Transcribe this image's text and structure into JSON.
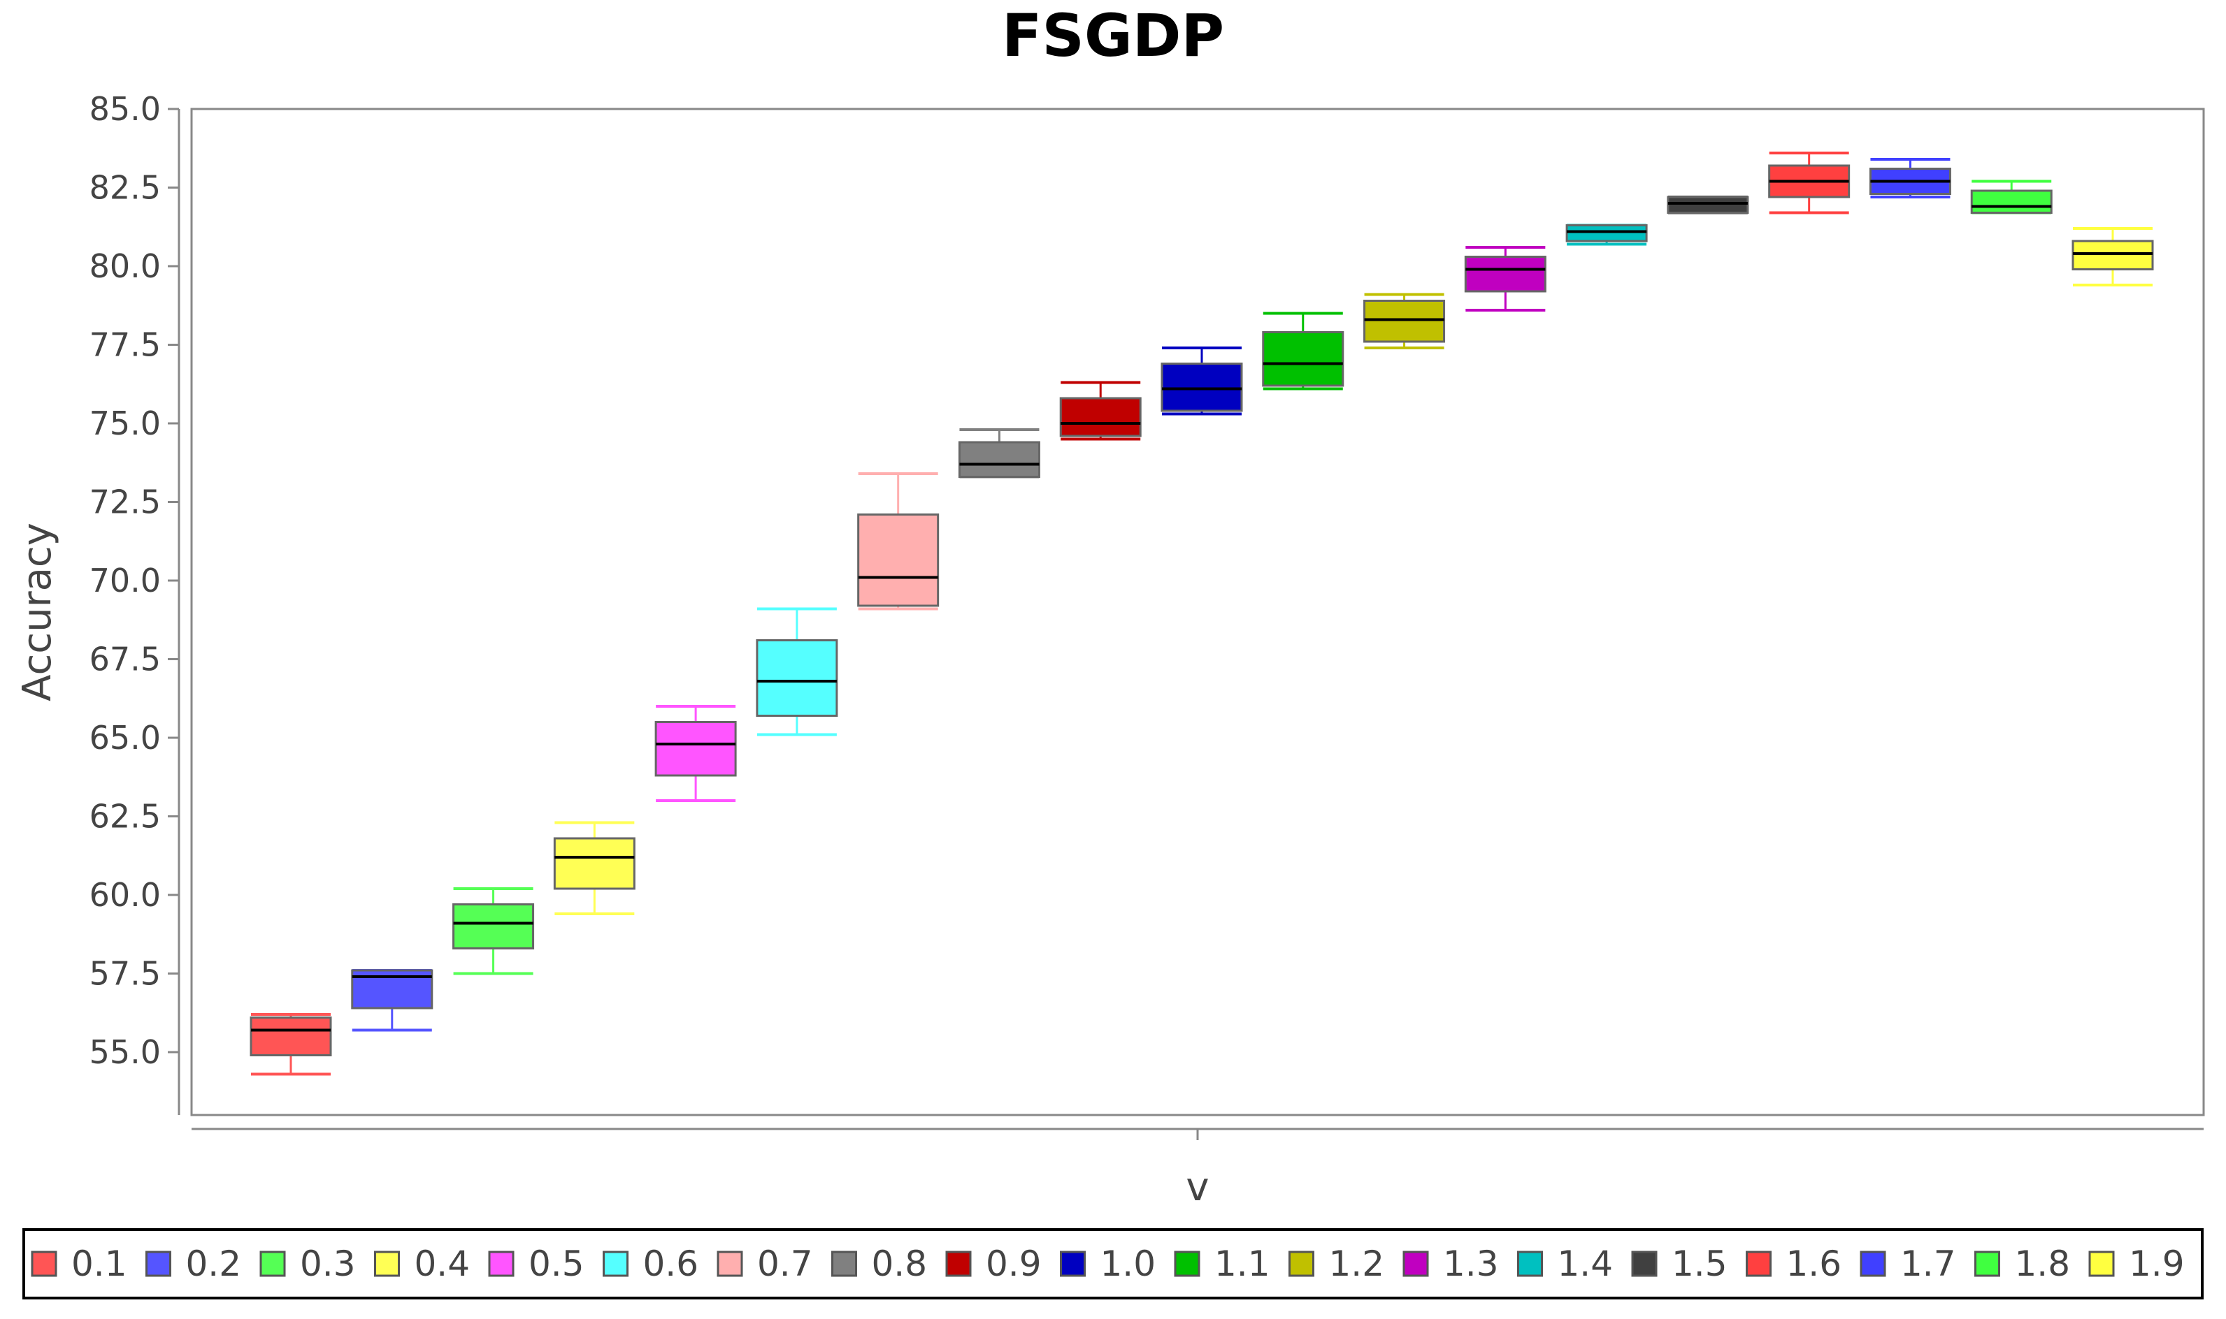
{
  "chart_data": {
    "type": "box",
    "title": "FSGDP",
    "xlabel": "v",
    "ylabel": "Accuracy",
    "ylim": [
      53.0,
      85.0
    ],
    "yticks": [
      "55.0",
      "57.5",
      "60.0",
      "62.5",
      "65.0",
      "67.5",
      "70.0",
      "72.5",
      "75.0",
      "77.5",
      "80.0",
      "82.5",
      "85.0"
    ],
    "legend_position": "bottom",
    "grid": false,
    "series": [
      {
        "name": "0.1",
        "color": "#ff5555",
        "min": 54.3,
        "q1": 54.9,
        "median": 55.7,
        "q3": 56.1,
        "max": 56.2
      },
      {
        "name": "0.2",
        "color": "#5555ff",
        "min": 55.7,
        "q1": 56.4,
        "median": 57.4,
        "q3": 57.6,
        "max": 57.6
      },
      {
        "name": "0.3",
        "color": "#55ff55",
        "min": 57.5,
        "q1": 58.3,
        "median": 59.1,
        "q3": 59.7,
        "max": 60.2
      },
      {
        "name": "0.4",
        "color": "#ffff55",
        "min": 59.4,
        "q1": 60.2,
        "median": 61.2,
        "q3": 61.8,
        "max": 62.3
      },
      {
        "name": "0.5",
        "color": "#ff55ff",
        "min": 63.0,
        "q1": 63.8,
        "median": 64.8,
        "q3": 65.5,
        "max": 66.0
      },
      {
        "name": "0.6",
        "color": "#55ffff",
        "min": 65.1,
        "q1": 65.7,
        "median": 66.8,
        "q3": 68.1,
        "max": 69.1
      },
      {
        "name": "0.7",
        "color": "#ffafaf",
        "min": 69.1,
        "q1": 69.2,
        "median": 70.1,
        "q3": 72.1,
        "max": 73.4
      },
      {
        "name": "0.8",
        "color": "#808080",
        "min": 73.3,
        "q1": 73.3,
        "median": 73.7,
        "q3": 74.4,
        "max": 74.8
      },
      {
        "name": "0.9",
        "color": "#c00000",
        "min": 74.5,
        "q1": 74.6,
        "median": 75.0,
        "q3": 75.8,
        "max": 76.3
      },
      {
        "name": "1.0",
        "color": "#0000c0",
        "min": 75.3,
        "q1": 75.4,
        "median": 76.1,
        "q3": 76.9,
        "max": 77.4
      },
      {
        "name": "1.1",
        "color": "#00c000",
        "min": 76.1,
        "q1": 76.2,
        "median": 76.9,
        "q3": 77.9,
        "max": 78.5
      },
      {
        "name": "1.2",
        "color": "#c0c000",
        "min": 77.4,
        "q1": 77.6,
        "median": 78.3,
        "q3": 78.9,
        "max": 79.1
      },
      {
        "name": "1.3",
        "color": "#c000c0",
        "min": 78.6,
        "q1": 79.2,
        "median": 79.9,
        "q3": 80.3,
        "max": 80.6
      },
      {
        "name": "1.4",
        "color": "#00c0c0",
        "min": 80.7,
        "q1": 80.8,
        "median": 81.1,
        "q3": 81.3,
        "max": 81.3
      },
      {
        "name": "1.5",
        "color": "#404040",
        "min": 81.7,
        "q1": 81.7,
        "median": 82.0,
        "q3": 82.2,
        "max": 82.2
      },
      {
        "name": "1.6",
        "color": "#ff4040",
        "min": 81.7,
        "q1": 82.2,
        "median": 82.7,
        "q3": 83.2,
        "max": 83.6
      },
      {
        "name": "1.7",
        "color": "#4040ff",
        "min": 82.2,
        "q1": 82.3,
        "median": 82.7,
        "q3": 83.1,
        "max": 83.4
      },
      {
        "name": "1.8",
        "color": "#40ff40",
        "min": 81.7,
        "q1": 81.7,
        "median": 81.9,
        "q3": 82.4,
        "max": 82.7
      },
      {
        "name": "1.9",
        "color": "#ffff40",
        "min": 79.4,
        "q1": 79.9,
        "median": 80.4,
        "q3": 80.8,
        "max": 81.2
      }
    ]
  }
}
